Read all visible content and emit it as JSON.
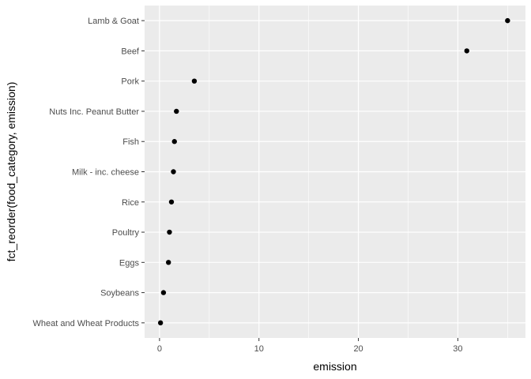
{
  "chart_data": {
    "type": "scatter",
    "xlabel": "emission",
    "ylabel": "fct_reorder(food_category, emission)",
    "xlim": [
      -1.5,
      36.8
    ],
    "x_ticks": [
      0,
      10,
      20,
      30
    ],
    "grid": true,
    "colors": {
      "panel": "#ebebeb",
      "grid_major": "#ffffff",
      "point": "#000000",
      "tick_text": "#4d4d4d"
    },
    "points": [
      {
        "category": "Lamb & Goat",
        "value": 35.0
      },
      {
        "category": "Beef",
        "value": 30.9
      },
      {
        "category": "Pork",
        "value": 3.5
      },
      {
        "category": "Nuts Inc. Peanut Butter",
        "value": 1.7
      },
      {
        "category": "Fish",
        "value": 1.5
      },
      {
        "category": "Milk - inc. cheese",
        "value": 1.4
      },
      {
        "category": "Rice",
        "value": 1.2
      },
      {
        "category": "Poultry",
        "value": 1.0
      },
      {
        "category": "Eggs",
        "value": 0.9
      },
      {
        "category": "Soybeans",
        "value": 0.4
      },
      {
        "category": "Wheat and Wheat Products",
        "value": 0.1
      }
    ]
  }
}
